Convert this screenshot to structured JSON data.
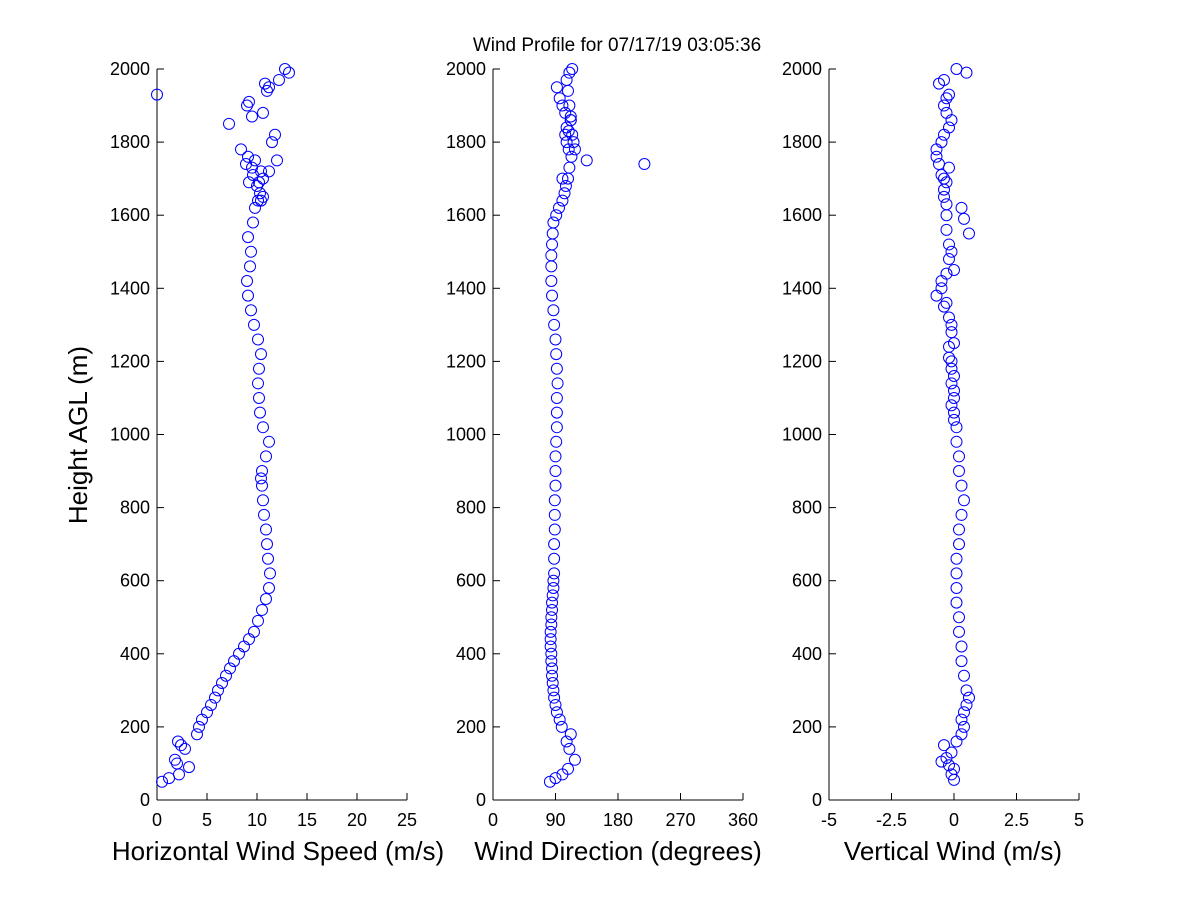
{
  "figure_title": "Wind Profile for  07/17/19 03:05:36",
  "y_axis_label": "Height AGL (m)",
  "marker_color": "#0000ff",
  "chart_data": [
    {
      "type": "scatter",
      "xlabel": "Horizontal Wind Speed (m/s)",
      "ylabel": "Height AGL (m)",
      "xlim": [
        0,
        25
      ],
      "ylim": [
        0,
        2000
      ],
      "xticks": [
        0,
        5,
        10,
        15,
        20,
        25
      ],
      "xtick_labels": [
        "0",
        "5",
        "10",
        "15",
        "20",
        "25"
      ],
      "yticks": [
        0,
        200,
        400,
        600,
        800,
        1000,
        1200,
        1400,
        1600,
        1800,
        2000
      ],
      "ytick_labels": [
        "0",
        "200",
        "400",
        "600",
        "800",
        "1000",
        "1200",
        "1400",
        "1600",
        "1800",
        "2000"
      ],
      "grid": false,
      "marker": "open-circle",
      "x": [
        0.5,
        1.2,
        2.2,
        3.2,
        2.0,
        1.8,
        2.8,
        2.4,
        2.1,
        4.0,
        4.2,
        4.5,
        5.0,
        5.4,
        5.8,
        6.1,
        6.5,
        6.9,
        7.3,
        7.7,
        8.2,
        8.7,
        9.2,
        9.7,
        10.1,
        10.5,
        10.9,
        11.2,
        11.3,
        11.1,
        11.0,
        10.9,
        10.7,
        10.6,
        10.5,
        10.4,
        10.5,
        10.9,
        11.2,
        10.6,
        10.3,
        10.2,
        10.1,
        10.2,
        10.4,
        10.1,
        9.7,
        9.4,
        9.1,
        9.0,
        9.3,
        9.4,
        9.1,
        9.6,
        9.8,
        10.1,
        10.3,
        10.0,
        10.2,
        10.6,
        10.4,
        9.5,
        8.9,
        9.8,
        9.1,
        8.4,
        11.5,
        11.8,
        7.2,
        9.5,
        10.6,
        9.0,
        9.2,
        0.0,
        11.0,
        11.2,
        10.8,
        12.2,
        13.2,
        12.8,
        12.0,
        11.2,
        9.2,
        9.6,
        10.6,
        10.4
      ],
      "y": [
        50,
        60,
        70,
        90,
        100,
        110,
        140,
        150,
        160,
        180,
        200,
        220,
        240,
        260,
        280,
        300,
        320,
        340,
        360,
        380,
        400,
        420,
        440,
        460,
        490,
        520,
        550,
        580,
        620,
        660,
        700,
        740,
        780,
        820,
        860,
        880,
        900,
        940,
        980,
        1020,
        1060,
        1100,
        1140,
        1180,
        1220,
        1260,
        1300,
        1340,
        1380,
        1420,
        1460,
        1500,
        1540,
        1580,
        1620,
        1640,
        1660,
        1680,
        1690,
        1700,
        1720,
        1730,
        1740,
        1750,
        1760,
        1780,
        1800,
        1820,
        1850,
        1870,
        1880,
        1900,
        1910,
        1930,
        1940,
        1950,
        1960,
        1970,
        1990,
        2000,
        1750,
        1720,
        1690,
        1710,
        1650,
        1640
      ],
      "data_note": ""
    },
    {
      "type": "scatter",
      "xlabel": "Wind Direction (degrees)",
      "ylabel": "",
      "xlim": [
        0,
        360
      ],
      "ylim": [
        0,
        2000
      ],
      "xticks": [
        0,
        90,
        180,
        270,
        360
      ],
      "xtick_labels": [
        "0",
        "90",
        "180",
        "270",
        "360"
      ],
      "yticks": [
        0,
        200,
        400,
        600,
        800,
        1000,
        1200,
        1400,
        1600,
        1800,
        2000
      ],
      "ytick_labels": [
        "0",
        "200",
        "400",
        "600",
        "800",
        "1000",
        "1200",
        "1400",
        "1600",
        "1800",
        "2000"
      ],
      "grid": false,
      "marker": "open-circle",
      "x": [
        82,
        90,
        100,
        108,
        118,
        110,
        106,
        112,
        99,
        96,
        92,
        90,
        88,
        87,
        86,
        85,
        85,
        84,
        84,
        83,
        83,
        83,
        84,
        84,
        85,
        85,
        86,
        87,
        87,
        88,
        88,
        88,
        89,
        89,
        89,
        90,
        90,
        90,
        91,
        92,
        92,
        92,
        93,
        92,
        91,
        90,
        88,
        87,
        85,
        84,
        84,
        84,
        85,
        86,
        87,
        91,
        95,
        100,
        103,
        105,
        108,
        110,
        113,
        109,
        106,
        104,
        106,
        112,
        104,
        100,
        96,
        92,
        135,
        218,
        100,
        118,
        116,
        114,
        112,
        110,
        108,
        106,
        110,
        114,
        112,
        109
      ],
      "y": [
        50,
        60,
        70,
        85,
        110,
        140,
        160,
        180,
        200,
        220,
        240,
        260,
        280,
        300,
        320,
        340,
        360,
        380,
        400,
        420,
        440,
        460,
        480,
        500,
        520,
        540,
        560,
        580,
        600,
        620,
        660,
        700,
        740,
        780,
        820,
        860,
        900,
        940,
        980,
        1020,
        1060,
        1100,
        1140,
        1180,
        1220,
        1260,
        1300,
        1340,
        1380,
        1420,
        1460,
        1490,
        1520,
        1550,
        1580,
        1600,
        1620,
        1640,
        1660,
        1680,
        1700,
        1730,
        1760,
        1780,
        1800,
        1820,
        1840,
        1860,
        1880,
        1900,
        1920,
        1950,
        1750,
        1740,
        1700,
        1780,
        1800,
        1820,
        1860,
        1900,
        1940,
        1970,
        1990,
        2000,
        1870,
        1830
      ],
      "data_note": ""
    },
    {
      "type": "scatter",
      "xlabel": "Vertical Wind (m/s)",
      "ylabel": "",
      "xlim": [
        -5,
        5
      ],
      "ylim": [
        0,
        2000
      ],
      "xticks": [
        -5,
        -2.5,
        0,
        2.5,
        5
      ],
      "xtick_labels": [
        "-5",
        "-2.5",
        "0",
        "2.5",
        "5"
      ],
      "yticks": [
        0,
        200,
        400,
        600,
        800,
        1000,
        1200,
        1400,
        1600,
        1800,
        2000
      ],
      "ytick_labels": [
        "0",
        "200",
        "400",
        "600",
        "800",
        "1000",
        "1200",
        "1400",
        "1600",
        "1800",
        "2000"
      ],
      "grid": false,
      "marker": "open-circle",
      "x": [
        0.0,
        -0.1,
        0.0,
        -0.2,
        -0.5,
        -0.3,
        -0.1,
        -0.4,
        0.1,
        0.3,
        0.4,
        0.3,
        0.4,
        0.5,
        0.6,
        0.5,
        0.4,
        0.3,
        0.3,
        0.2,
        0.2,
        0.1,
        0.1,
        0.1,
        0.1,
        0.2,
        0.2,
        0.3,
        0.4,
        0.3,
        0.2,
        0.2,
        0.1,
        0.1,
        0.0,
        0.0,
        -0.1,
        0.0,
        -0.1,
        -0.2,
        -0.1,
        -0.2,
        -0.3,
        -0.5,
        -0.3,
        -0.2,
        -0.2,
        -0.3,
        -0.3,
        -0.3,
        -0.4,
        -0.4,
        -0.3,
        -0.4,
        -0.5,
        -0.6,
        -0.7,
        -0.7,
        -0.5,
        -0.4,
        -0.2,
        -0.1,
        -0.3,
        -0.4,
        -0.3,
        -0.2,
        -0.6,
        -0.4,
        0.5,
        0.1,
        -0.2,
        0.3,
        0.4,
        0.6,
        -0.1,
        0.0,
        -0.5,
        -0.7,
        -0.4,
        -0.1,
        0.0,
        -0.2,
        -0.1,
        0.0,
        -0.1,
        0.0
      ],
      "y": [
        55,
        70,
        85,
        95,
        105,
        115,
        130,
        150,
        160,
        180,
        200,
        220,
        240,
        260,
        280,
        300,
        340,
        380,
        420,
        460,
        500,
        540,
        580,
        620,
        660,
        700,
        740,
        780,
        820,
        860,
        900,
        940,
        980,
        1020,
        1060,
        1100,
        1140,
        1160,
        1200,
        1240,
        1280,
        1320,
        1360,
        1400,
        1440,
        1480,
        1520,
        1560,
        1600,
        1630,
        1650,
        1670,
        1690,
        1700,
        1710,
        1740,
        1760,
        1780,
        1800,
        1820,
        1840,
        1860,
        1880,
        1900,
        1920,
        1930,
        1960,
        1970,
        1990,
        2000,
        1730,
        1620,
        1590,
        1550,
        1500,
        1450,
        1420,
        1380,
        1350,
        1300,
        1250,
        1210,
        1180,
        1120,
        1080,
        1040
      ],
      "data_note": ""
    }
  ]
}
